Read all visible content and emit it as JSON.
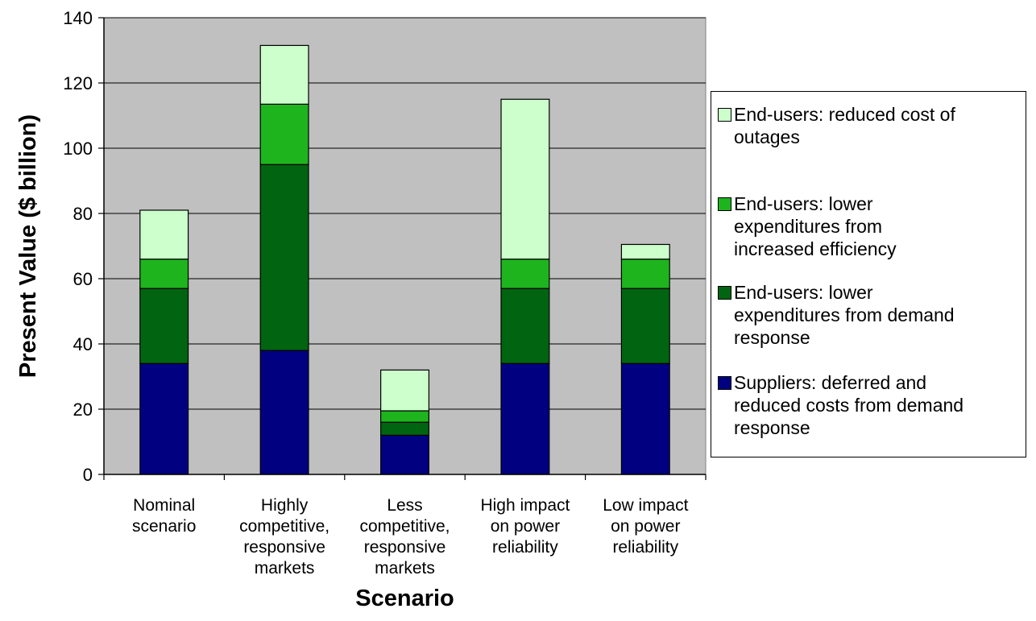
{
  "chart_data": {
    "type": "bar",
    "stacked": true,
    "xlabel": "Scenario",
    "ylabel": "Present Value ($ billion)",
    "ylim": [
      0,
      140
    ],
    "yticks": [
      0,
      20,
      40,
      60,
      80,
      100,
      120,
      140
    ],
    "grid": true,
    "legend_position": "right",
    "plot_background": "#c0c0c0",
    "categories": [
      [
        "Nominal",
        "scenario"
      ],
      [
        "Highly",
        "competitive,",
        "responsive",
        "markets"
      ],
      [
        "Less",
        "competitive,",
        "responsive",
        "markets"
      ],
      [
        "High impact",
        "on power",
        "reliability"
      ],
      [
        "Low impact",
        "on power",
        "reliability"
      ]
    ],
    "series": [
      {
        "name": "Suppliers: deferred and reduced costs from demand response",
        "legend_lines": [
          "Suppliers: deferred and",
          "reduced costs from demand",
          "response"
        ],
        "color": "#000080",
        "values": [
          34,
          38,
          12,
          34,
          34
        ]
      },
      {
        "name": "End-users: lower expenditures from demand response",
        "legend_lines": [
          "End-users: lower",
          "expenditures from demand",
          "response"
        ],
        "color": "#006411",
        "values": [
          23,
          57,
          4,
          23,
          23
        ]
      },
      {
        "name": "End-users: lower expenditures from increased efficiency",
        "legend_lines": [
          "End-users: lower",
          "expenditures from",
          "increased efficiency"
        ],
        "color": "#1eb41e",
        "values": [
          9,
          18.5,
          3.5,
          9,
          9
        ]
      },
      {
        "name": "End-users: reduced cost of outages",
        "legend_lines": [
          "End-users: reduced cost of",
          "outages"
        ],
        "color": "#ccffcc",
        "values": [
          15,
          18,
          12.5,
          49,
          4.5
        ]
      }
    ]
  }
}
